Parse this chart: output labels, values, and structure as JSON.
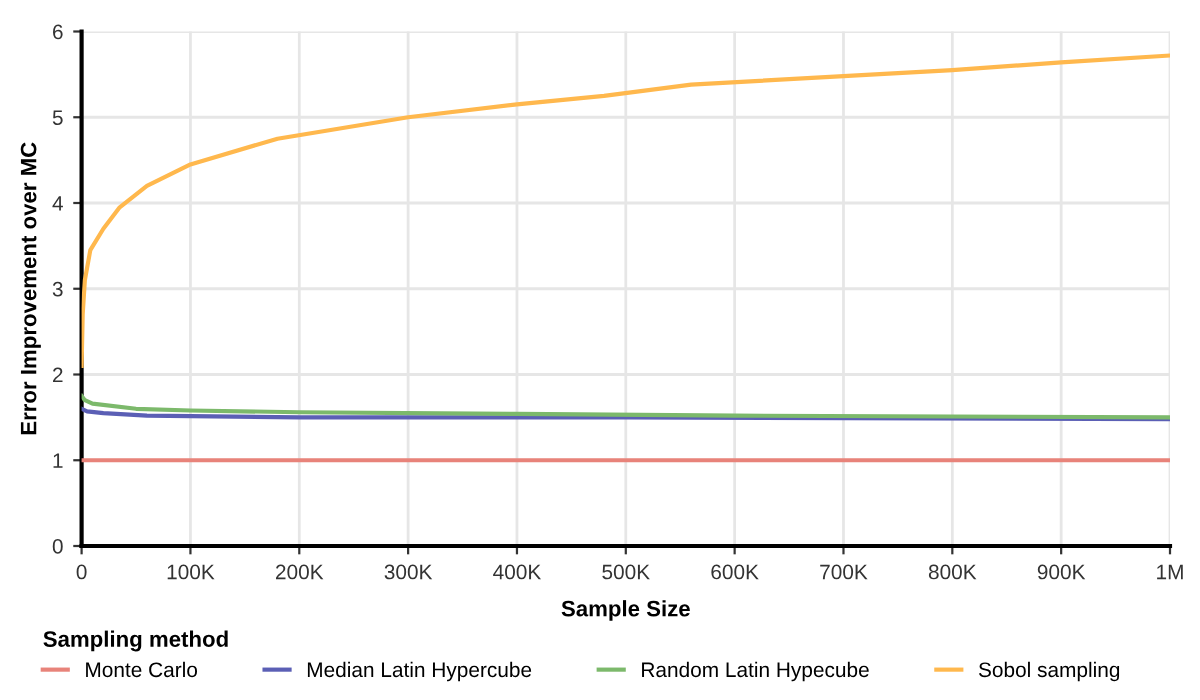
{
  "chart_data": {
    "type": "line",
    "xlabel": "Sample Size",
    "ylabel": "Error Improvement over MC",
    "legend_title": "Sampling method",
    "legend": "bottom left",
    "grid": true,
    "marker": "none",
    "line_style": "solid",
    "xlim": [
      0,
      1000000
    ],
    "xticks": [
      0,
      {
        "value": 100000,
        "label": "100K"
      },
      {
        "value": 200000,
        "label": "200K"
      },
      {
        "value": 300000,
        "label": "300K"
      },
      {
        "value": 400000,
        "label": "400K"
      },
      {
        "value": 500000,
        "label": "500K"
      },
      {
        "value": 600000,
        "label": "600K"
      },
      {
        "value": 700000,
        "label": "700K"
      },
      {
        "value": 800000,
        "label": "800K"
      },
      {
        "value": 900000,
        "label": "900K"
      },
      {
        "value": 1000000,
        "label": "1M"
      }
    ],
    "ylim": [
      0,
      6
    ],
    "yticks": [
      0,
      1,
      2,
      3,
      4,
      5,
      6
    ],
    "series": [
      {
        "name": "Monte Carlo",
        "color": "#e8837a",
        "x": [
          0,
          1000000
        ],
        "values": [
          1,
          1
        ]
      },
      {
        "name": "Median Latin Hypercube",
        "color": "#5b5fb5",
        "x": [
          0,
          5000,
          20000,
          60000,
          200000,
          500000,
          1000000
        ],
        "values": [
          1.6,
          1.57,
          1.55,
          1.52,
          1.5,
          1.5,
          1.48
        ]
      },
      {
        "name": "Random Latin Hypecube",
        "color": "#7cb96b",
        "x": [
          0,
          3000,
          10000,
          50000,
          100000,
          200000,
          400000,
          600000,
          800000,
          1000000
        ],
        "values": [
          1.75,
          1.7,
          1.66,
          1.6,
          1.58,
          1.56,
          1.54,
          1.52,
          1.51,
          1.5
        ]
      },
      {
        "name": "Sobol sampling",
        "color": "#ffb84d",
        "x": [
          0,
          1000,
          3000,
          8000,
          20000,
          35000,
          60000,
          100000,
          180000,
          300000,
          400000,
          480000,
          560000,
          700000,
          800000,
          900000,
          1000000
        ],
        "values": [
          2.1,
          2.7,
          3.1,
          3.45,
          3.7,
          3.95,
          4.2,
          4.45,
          4.75,
          5.0,
          5.15,
          5.25,
          5.38,
          5.48,
          5.55,
          5.64,
          5.72
        ]
      }
    ]
  }
}
